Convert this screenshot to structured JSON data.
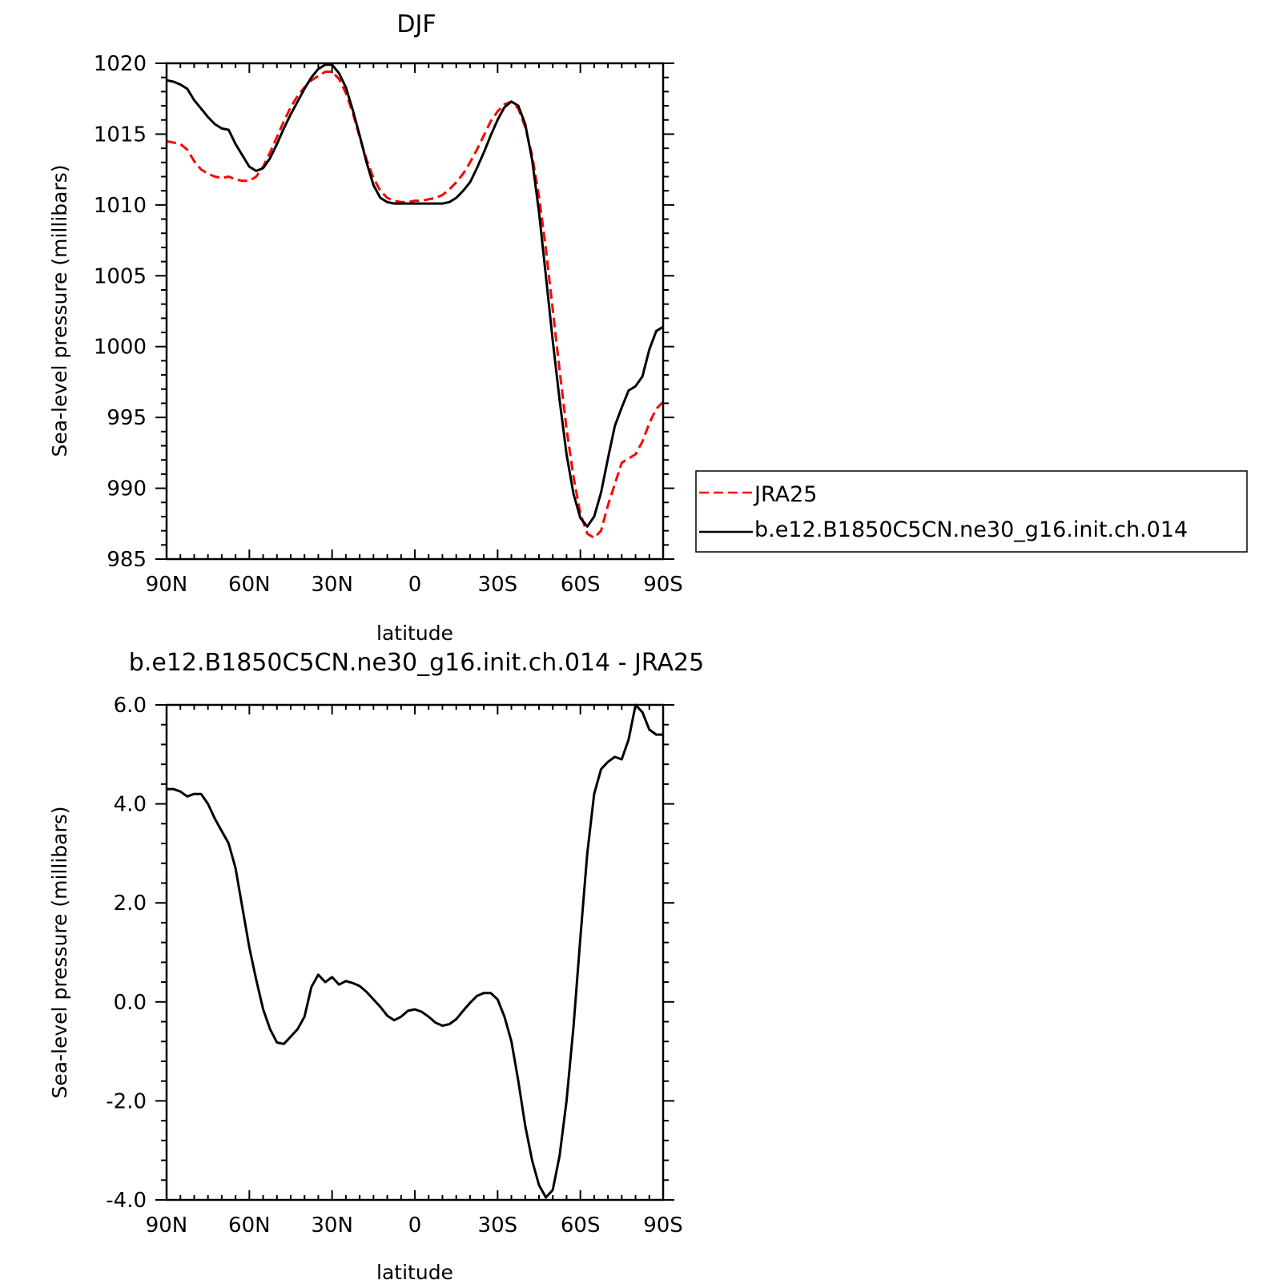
{
  "figure": {
    "colors": {
      "model": "#000000",
      "obs": "#ff0000",
      "axes": "#000000",
      "background": "#ffffff"
    }
  },
  "chart_data": [
    {
      "type": "line",
      "title": "DJF",
      "xlabel": "latitude",
      "ylabel": "Sea-level pressure (millibars)",
      "xlim": [
        90,
        -90
      ],
      "ylim": [
        985,
        1020
      ],
      "xticks": [
        90,
        60,
        30,
        0,
        -30,
        -60,
        -90
      ],
      "xticklabels": [
        "90N",
        "60N",
        "30N",
        "0",
        "30S",
        "60S",
        "90S"
      ],
      "yticks": [
        985,
        990,
        995,
        1000,
        1005,
        1010,
        1015,
        1020
      ],
      "yticklabels": [
        "985",
        "990",
        "995",
        "1000",
        "1005",
        "1010",
        "1015",
        "1020"
      ],
      "grid": false,
      "legend": {
        "position": "outside-right"
      },
      "series": [
        {
          "name": "JRA25",
          "style": "dashed",
          "color": "#ff0000",
          "x": [
            90,
            87.5,
            85,
            82.5,
            80,
            77.5,
            75,
            72.5,
            70,
            67.5,
            65,
            62.5,
            60,
            57.5,
            55,
            52.5,
            50,
            47.5,
            45,
            42.5,
            40,
            37.5,
            35,
            32.5,
            30,
            27.5,
            25,
            22.5,
            20,
            17.5,
            15,
            12.5,
            10,
            7.5,
            5,
            2.5,
            0,
            -2.5,
            -5,
            -7.5,
            -10,
            -12.5,
            -15,
            -17.5,
            -20,
            -22.5,
            -25,
            -27.5,
            -30,
            -32.5,
            -35,
            -37.5,
            -40,
            -42.5,
            -45,
            -47.5,
            -50,
            -52.5,
            -55,
            -57.5,
            -60,
            -62.5,
            -65,
            -67.5,
            -70,
            -72.5,
            -75,
            -77.5,
            -80,
            -82.5,
            -85,
            -87.5,
            -90
          ],
          "y": [
            1014.5,
            1014.4,
            1014.3,
            1013.9,
            1013.1,
            1012.5,
            1012.2,
            1012.0,
            1011.9,
            1012.0,
            1011.8,
            1011.7,
            1011.7,
            1012.0,
            1012.7,
            1013.7,
            1014.8,
            1015.9,
            1016.9,
            1017.7,
            1018.3,
            1018.8,
            1019.1,
            1019.4,
            1019.4,
            1018.9,
            1017.9,
            1016.5,
            1014.8,
            1013.2,
            1011.9,
            1011.0,
            1010.5,
            1010.3,
            1010.2,
            1010.2,
            1010.3,
            1010.3,
            1010.4,
            1010.5,
            1010.7,
            1011.1,
            1011.6,
            1012.2,
            1013.0,
            1013.9,
            1014.9,
            1015.9,
            1016.6,
            1017.1,
            1017.3,
            1016.8,
            1015.5,
            1013.5,
            1010.6,
            1006.9,
            1002.6,
            998.3,
            994.2,
            990.8,
            988.2,
            986.8,
            986.5,
            987.0,
            988.8,
            990.3,
            991.8,
            992.1,
            992.4,
            993.3,
            994.6,
            995.6,
            996.1
          ]
        },
        {
          "name": "b.e12.B1850C5CN.ne30_g16.init.ch.014",
          "style": "solid",
          "color": "#000000",
          "x": [
            90,
            87.5,
            85,
            82.5,
            80,
            77.5,
            75,
            72.5,
            70,
            67.5,
            65,
            62.5,
            60,
            57.5,
            55,
            52.5,
            50,
            47.5,
            45,
            42.5,
            40,
            37.5,
            35,
            32.5,
            30,
            27.5,
            25,
            22.5,
            20,
            17.5,
            15,
            12.5,
            10,
            7.5,
            5,
            2.5,
            0,
            -2.5,
            -5,
            -7.5,
            -10,
            -12.5,
            -15,
            -17.5,
            -20,
            -22.5,
            -25,
            -27.5,
            -30,
            -32.5,
            -35,
            -37.5,
            -40,
            -42.5,
            -45,
            -47.5,
            -50,
            -52.5,
            -55,
            -57.5,
            -60,
            -62.5,
            -65,
            -67.5,
            -70,
            -72.5,
            -75,
            -77.5,
            -80,
            -82.5,
            -85,
            -87.5,
            -90
          ],
          "y": [
            1018.8,
            1018.7,
            1018.5,
            1018.2,
            1017.4,
            1016.8,
            1016.2,
            1015.7,
            1015.4,
            1015.3,
            1014.3,
            1013.5,
            1012.7,
            1012.4,
            1012.6,
            1013.3,
            1014.3,
            1015.4,
            1016.4,
            1017.3,
            1018.2,
            1019.0,
            1019.6,
            1019.9,
            1019.9,
            1019.3,
            1018.3,
            1016.7,
            1014.9,
            1013.0,
            1011.4,
            1010.5,
            1010.2,
            1010.1,
            1010.1,
            1010.1,
            1010.1,
            1010.1,
            1010.1,
            1010.1,
            1010.1,
            1010.2,
            1010.5,
            1011.0,
            1011.6,
            1012.6,
            1013.7,
            1014.9,
            1016.0,
            1016.9,
            1017.3,
            1017.0,
            1015.7,
            1013.2,
            1009.5,
            1005.0,
            1000.4,
            996.2,
            992.4,
            989.6,
            987.9,
            987.3,
            988.0,
            989.7,
            992.1,
            994.4,
            995.7,
            996.9,
            997.2,
            997.9,
            999.8,
            1001.1,
            1001.4
          ]
        }
      ]
    },
    {
      "type": "line",
      "title": "b.e12.B1850C5CN.ne30_g16.init.ch.014 - JRA25",
      "xlabel": "latitude",
      "ylabel": "Sea-level pressure (millibars)",
      "xlim": [
        90,
        -90
      ],
      "ylim": [
        -4,
        6
      ],
      "xticks": [
        90,
        60,
        30,
        0,
        -30,
        -60,
        -90
      ],
      "xticklabels": [
        "90N",
        "60N",
        "30N",
        "0",
        "30S",
        "60S",
        "90S"
      ],
      "yticks": [
        -4,
        -2,
        0,
        2,
        4,
        6
      ],
      "yticklabels": [
        "-4.0",
        "-2.0",
        "0.0",
        "2.0",
        "4.0",
        "6.0"
      ],
      "grid": false,
      "series": [
        {
          "style": "solid",
          "color": "#000000",
          "x": [
            90,
            87.5,
            85,
            82.5,
            80,
            77.5,
            75,
            72.5,
            70,
            67.5,
            65,
            62.5,
            60,
            57.5,
            55,
            52.5,
            50,
            47.5,
            45,
            42.5,
            40,
            37.5,
            35,
            32.5,
            30,
            27.5,
            25,
            22.5,
            20,
            17.5,
            15,
            12.5,
            10,
            7.5,
            5,
            2.5,
            0,
            -2.5,
            -5,
            -7.5,
            -10,
            -12.5,
            -15,
            -17.5,
            -20,
            -22.5,
            -25,
            -27.5,
            -30,
            -32.5,
            -35,
            -37.5,
            -40,
            -42.5,
            -45,
            -47.5,
            -50,
            -52.5,
            -55,
            -57.5,
            -60,
            -62.5,
            -65,
            -67.5,
            -70,
            -72.5,
            -75,
            -77.5,
            -80,
            -82.5,
            -85,
            -87.5,
            -90
          ],
          "y": [
            4.3,
            4.3,
            4.25,
            4.15,
            4.2,
            4.2,
            4.0,
            3.7,
            3.45,
            3.2,
            2.7,
            1.9,
            1.1,
            0.45,
            -0.15,
            -0.55,
            -0.82,
            -0.85,
            -0.7,
            -0.55,
            -0.3,
            0.3,
            0.55,
            0.4,
            0.5,
            0.35,
            0.42,
            0.38,
            0.32,
            0.2,
            0.05,
            -0.1,
            -0.28,
            -0.37,
            -0.3,
            -0.18,
            -0.15,
            -0.2,
            -0.3,
            -0.42,
            -0.48,
            -0.45,
            -0.35,
            -0.18,
            -0.02,
            0.12,
            0.18,
            0.18,
            0.05,
            -0.3,
            -0.8,
            -1.6,
            -2.5,
            -3.2,
            -3.7,
            -3.95,
            -3.8,
            -3.1,
            -2.0,
            -0.5,
            1.3,
            3.0,
            4.2,
            4.7,
            4.85,
            4.95,
            4.9,
            5.3,
            6.0,
            5.85,
            5.5,
            5.4,
            5.4
          ]
        }
      ]
    }
  ],
  "legend": {
    "entries": [
      "JRA25",
      "b.e12.B1850C5CN.ne30_g16.init.ch.014"
    ]
  }
}
